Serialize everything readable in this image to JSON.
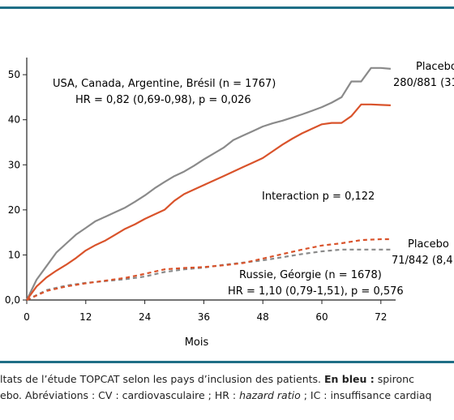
{
  "chart_data": {
    "type": "line",
    "xlabel": "Mois",
    "ylabel": "",
    "xlim": [
      0,
      75
    ],
    "ylim": [
      0,
      52
    ],
    "x_ticks": [
      0,
      12,
      24,
      36,
      48,
      60,
      72
    ],
    "y_ticks": [
      0,
      10,
      20,
      30,
      40,
      50
    ],
    "y_tick_labels": [
      "0,0",
      "10",
      "20",
      "30",
      "40",
      "50"
    ],
    "grid": false,
    "series": [
      {
        "name": "Placebo",
        "group": "USA, Canada, Argentine, Brésil",
        "color": "#8a8a8a",
        "dash": false,
        "x": [
          0,
          2,
          4,
          6,
          8,
          10,
          12,
          14,
          16,
          18,
          20,
          22,
          24,
          26,
          28,
          30,
          32,
          34,
          36,
          38,
          40,
          42,
          44,
          46,
          48,
          50,
          52,
          54,
          56,
          58,
          60,
          62,
          64,
          66,
          68,
          70,
          72,
          74
        ],
        "values": [
          0,
          4.5,
          7.5,
          10.5,
          12.5,
          14.5,
          16,
          17.5,
          18.5,
          19.5,
          20.5,
          21.8,
          23.2,
          24.8,
          26.2,
          27.5,
          28.5,
          29.8,
          31.2,
          32.5,
          33.8,
          35.5,
          36.5,
          37.5,
          38.5,
          39.2,
          39.8,
          40.5,
          41.2,
          42,
          42.8,
          43.8,
          45,
          48.5,
          48.5,
          51.5,
          51.5,
          51.3
        ]
      },
      {
        "name": "Spironolactone",
        "group": "USA, Canada, Argentine, Brésil",
        "color": "#d9532b",
        "dash": false,
        "x": [
          0,
          2,
          4,
          6,
          8,
          10,
          12,
          14,
          16,
          18,
          20,
          22,
          24,
          26,
          28,
          30,
          32,
          34,
          36,
          38,
          40,
          42,
          44,
          46,
          48,
          50,
          52,
          54,
          56,
          58,
          60,
          62,
          64,
          66,
          68,
          70,
          72,
          74
        ],
        "values": [
          0,
          3,
          5,
          6.5,
          7.8,
          9.3,
          11,
          12.2,
          13.2,
          14.5,
          15.8,
          16.8,
          18,
          19,
          20,
          22,
          23.5,
          24.5,
          25.5,
          26.5,
          27.5,
          28.5,
          29.5,
          30.5,
          31.5,
          33,
          34.5,
          35.8,
          37,
          38,
          39,
          39.3,
          39.3,
          40.8,
          43.4,
          43.4,
          43.3,
          43.2
        ]
      },
      {
        "name": "Placebo",
        "group": "Russie, Géorgie",
        "color": "#8a8a8a",
        "dash": true,
        "x": [
          0,
          4,
          8,
          12,
          16,
          20,
          24,
          28,
          32,
          36,
          40,
          44,
          48,
          52,
          56,
          60,
          64,
          68,
          72,
          74
        ],
        "values": [
          0,
          2.2,
          3.2,
          3.8,
          4.2,
          4.6,
          5.2,
          6.2,
          6.8,
          7.2,
          7.8,
          8.3,
          8.8,
          9.5,
          10.2,
          10.8,
          11.2,
          11.2,
          11.2,
          11.2
        ]
      },
      {
        "name": "Spironolactone",
        "group": "Russie, Géorgie",
        "color": "#d9532b",
        "dash": true,
        "x": [
          0,
          4,
          8,
          12,
          16,
          20,
          24,
          28,
          32,
          36,
          40,
          44,
          48,
          52,
          56,
          60,
          64,
          68,
          72,
          74
        ],
        "values": [
          0,
          2,
          3,
          3.7,
          4.3,
          4.9,
          5.8,
          6.8,
          7.1,
          7.3,
          7.7,
          8.2,
          9.2,
          10.2,
          11.2,
          12.1,
          12.6,
          13.3,
          13.5,
          13.5
        ]
      }
    ],
    "annotations": {
      "group1_line1": "USA, Canada, Argentine, Brésil (n = 1767)",
      "group1_line2": "HR = 0,82 (0,69-0,98), p = 0,026",
      "interaction": "Interaction p = 0,122",
      "group2_line1": "Russie, Géorgie (n = 1678)",
      "group2_line2": "HR = 1,10 (0,79-1,51), p = 0,576",
      "placebo1_label": "Placebo",
      "placebo1_count": "280/881 (31",
      "placebo2_label": "Placebo",
      "placebo2_count": "71/842 (8,4"
    }
  },
  "caption": {
    "line1_start": "ltats de l’étude TOPCAT selon les pays d’inclusion des patients. ",
    "line1_bold": "En bleu :",
    "line1_end": " spironc",
    "line2_start": "ebo. Abréviations : CV : cardiovasculaire ; HR : ",
    "line2_italic": "hazard ratio",
    "line2_end": " ; IC : insuffisance cardiaq"
  }
}
